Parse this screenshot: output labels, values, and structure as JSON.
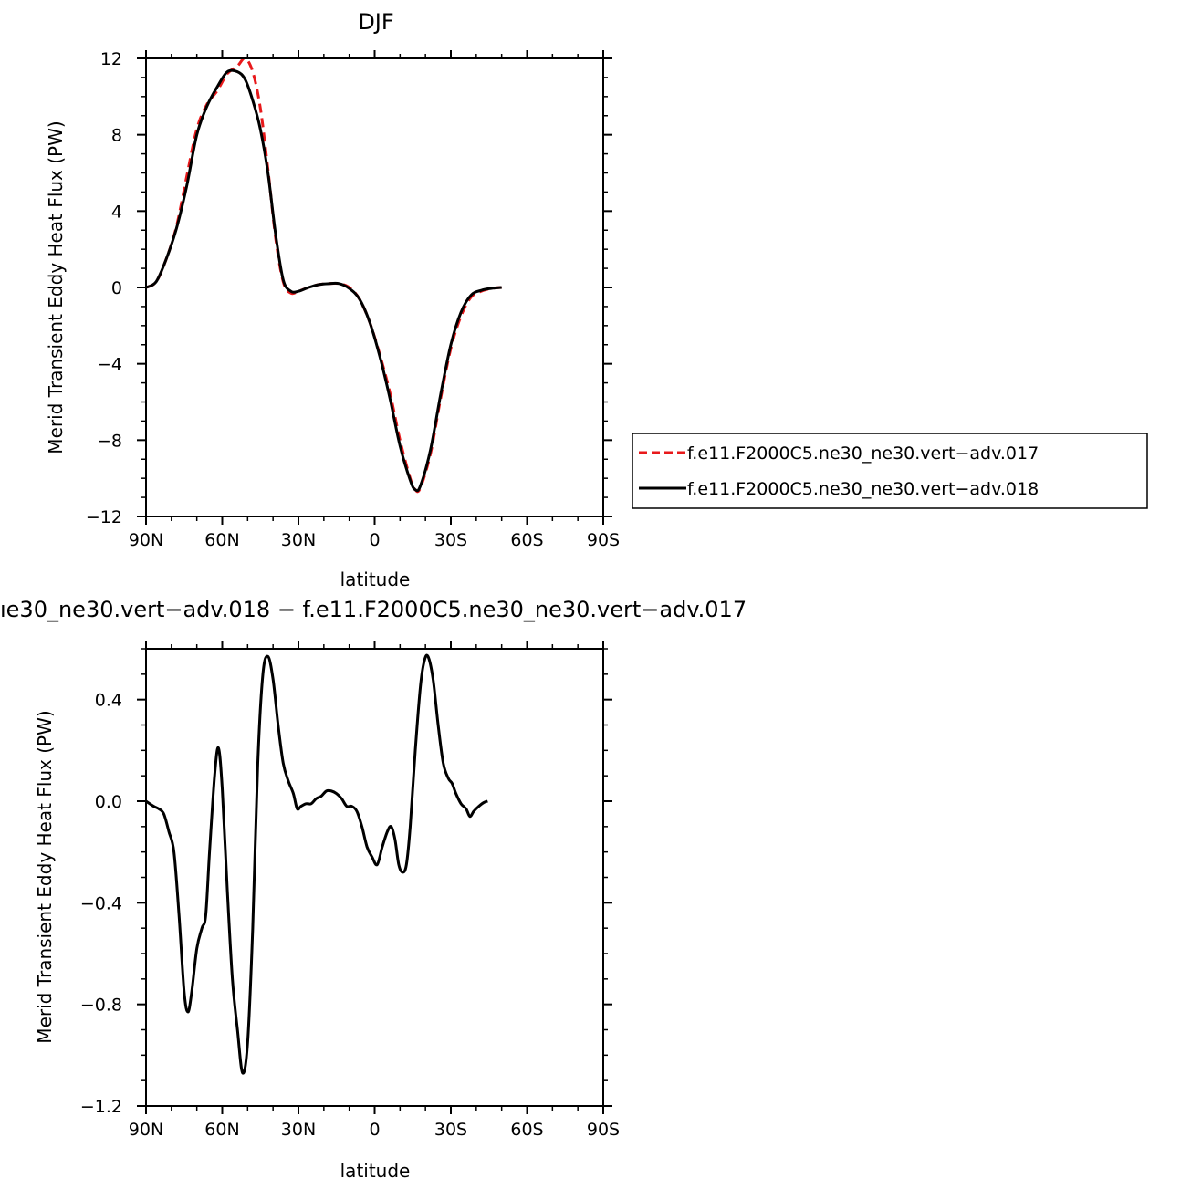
{
  "chart_data": [
    {
      "type": "line",
      "title": "DJF",
      "xlabel": "latitude",
      "ylabel": "Merid Transient Eddy Heat Flux (PW)",
      "xlim": [
        90,
        -90
      ],
      "ylim": [
        -12,
        12
      ],
      "x_ticks": [
        {
          "value": 90,
          "label": "90N"
        },
        {
          "value": 60,
          "label": "60N"
        },
        {
          "value": 30,
          "label": "30N"
        },
        {
          "value": 0,
          "label": "0"
        },
        {
          "value": -30,
          "label": "30S"
        },
        {
          "value": -60,
          "label": "60S"
        },
        {
          "value": -90,
          "label": "90S"
        }
      ],
      "y_ticks": [
        {
          "value": 12,
          "label": "12"
        },
        {
          "value": 8,
          "label": "8"
        },
        {
          "value": 4,
          "label": "4"
        },
        {
          "value": 0,
          "label": "0"
        },
        {
          "value": -4,
          "label": "−4"
        },
        {
          "value": -8,
          "label": "−8"
        },
        {
          "value": -12,
          "label": "−12"
        }
      ],
      "legend": {
        "placement": "right"
      },
      "series": [
        {
          "name": "f.e11.F2000C5.ne30_ne30.vert−adv.017",
          "color": "#e8191b",
          "dash": "dashed",
          "points": [
            [
              90,
              0
            ],
            [
              86,
              0.3
            ],
            [
              82,
              1.5
            ],
            [
              78,
              3.2
            ],
            [
              74,
              5.8
            ],
            [
              70,
              8.3
            ],
            [
              66,
              9.6
            ],
            [
              62,
              10.3
            ],
            [
              58,
              11.2
            ],
            [
              54,
              11.6
            ],
            [
              51,
              12.0
            ],
            [
              48,
              11.3
            ],
            [
              45,
              9.4
            ],
            [
              42,
              6.2
            ],
            [
              39,
              2.6
            ],
            [
              36,
              0.3
            ],
            [
              33,
              -0.3
            ],
            [
              30,
              -0.2
            ],
            [
              26,
              0
            ],
            [
              22,
              0.15
            ],
            [
              18,
              0.2
            ],
            [
              14,
              0.2
            ],
            [
              10,
              0
            ],
            [
              6,
              -0.6
            ],
            [
              2,
              -1.8
            ],
            [
              -2,
              -3.5
            ],
            [
              -6,
              -5.5
            ],
            [
              -10,
              -8.0
            ],
            [
              -14,
              -10.0
            ],
            [
              -16,
              -10.6
            ],
            [
              -18,
              -10.5
            ],
            [
              -22,
              -8.7
            ],
            [
              -26,
              -5.8
            ],
            [
              -30,
              -3.2
            ],
            [
              -34,
              -1.5
            ],
            [
              -38,
              -0.5
            ],
            [
              -42,
              -0.2
            ],
            [
              -46,
              -0.05
            ],
            [
              -50,
              0
            ]
          ]
        },
        {
          "name": "f.e11.F2000C5.ne30_ne30.vert−adv.018",
          "color": "#000000",
          "dash": "solid",
          "points": [
            [
              90,
              0
            ],
            [
              86,
              0.3
            ],
            [
              82,
              1.5
            ],
            [
              78,
              3.1
            ],
            [
              74,
              5.3
            ],
            [
              70,
              8.0
            ],
            [
              66,
              9.5
            ],
            [
              62,
              10.5
            ],
            [
              58,
              11.3
            ],
            [
              54,
              11.3
            ],
            [
              51,
              10.9
            ],
            [
              48,
              9.8
            ],
            [
              45,
              8.3
            ],
            [
              42,
              6.0
            ],
            [
              39,
              2.8
            ],
            [
              36,
              0.4
            ],
            [
              33,
              -0.2
            ],
            [
              30,
              -0.2
            ],
            [
              26,
              0
            ],
            [
              22,
              0.15
            ],
            [
              18,
              0.2
            ],
            [
              14,
              0.2
            ],
            [
              10,
              -0.05
            ],
            [
              6,
              -0.6
            ],
            [
              2,
              -1.8
            ],
            [
              -2,
              -3.6
            ],
            [
              -6,
              -5.8
            ],
            [
              -10,
              -8.3
            ],
            [
              -14,
              -10.1
            ],
            [
              -16,
              -10.6
            ],
            [
              -18,
              -10.4
            ],
            [
              -22,
              -8.5
            ],
            [
              -26,
              -5.6
            ],
            [
              -30,
              -3.0
            ],
            [
              -34,
              -1.3
            ],
            [
              -38,
              -0.4
            ],
            [
              -42,
              -0.15
            ],
            [
              -46,
              -0.05
            ],
            [
              -50,
              0
            ]
          ]
        }
      ]
    },
    {
      "type": "line",
      "title": "ıe30_ne30.vert−adv.018 − f.e11.F2000C5.ne30_ne30.vert−adv.017",
      "xlabel": "latitude",
      "ylabel": "Merid Transient Eddy Heat Flux (PW)",
      "xlim": [
        90,
        -90
      ],
      "ylim": [
        -1.2,
        0.6
      ],
      "x_ticks": [
        {
          "value": 90,
          "label": "90N"
        },
        {
          "value": 60,
          "label": "60N"
        },
        {
          "value": 30,
          "label": "30N"
        },
        {
          "value": 0,
          "label": "0"
        },
        {
          "value": -30,
          "label": "30S"
        },
        {
          "value": -60,
          "label": "60S"
        },
        {
          "value": -90,
          "label": "90S"
        }
      ],
      "y_ticks": [
        {
          "value": 0.4,
          "label": "0.4"
        },
        {
          "value": 0.0,
          "label": "0.0"
        },
        {
          "value": -0.4,
          "label": "−0.4"
        },
        {
          "value": -0.8,
          "label": "−0.8"
        },
        {
          "value": -1.2,
          "label": "−1.2"
        }
      ],
      "series": [
        {
          "color": "#000000",
          "dash": "solid",
          "points": [
            [
              90,
              0
            ],
            [
              87,
              -0.02
            ],
            [
              85,
              -0.03
            ],
            [
              83,
              -0.05
            ],
            [
              81,
              -0.12
            ],
            [
              79,
              -0.2
            ],
            [
              77,
              -0.45
            ],
            [
              75,
              -0.75
            ],
            [
              73.5,
              -0.83
            ],
            [
              72,
              -0.75
            ],
            [
              70,
              -0.58
            ],
            [
              68,
              -0.5
            ],
            [
              66.5,
              -0.45
            ],
            [
              65,
              -0.2
            ],
            [
              63,
              0.1
            ],
            [
              61.5,
              0.21
            ],
            [
              60,
              0.05
            ],
            [
              58,
              -0.35
            ],
            [
              56,
              -0.7
            ],
            [
              54,
              -0.9
            ],
            [
              52,
              -1.07
            ],
            [
              50,
              -0.95
            ],
            [
              48,
              -0.5
            ],
            [
              46,
              0.15
            ],
            [
              44,
              0.5
            ],
            [
              42,
              0.57
            ],
            [
              40,
              0.48
            ],
            [
              38,
              0.3
            ],
            [
              36,
              0.15
            ],
            [
              34,
              0.08
            ],
            [
              32,
              0.03
            ],
            [
              30.5,
              -0.03
            ],
            [
              29,
              -0.02
            ],
            [
              27,
              -0.01
            ],
            [
              25,
              -0.01
            ],
            [
              23,
              0.01
            ],
            [
              21,
              0.02
            ],
            [
              19,
              0.04
            ],
            [
              17,
              0.04
            ],
            [
              15,
              0.03
            ],
            [
              13,
              0.01
            ],
            [
              11,
              -0.02
            ],
            [
              9,
              -0.02
            ],
            [
              7,
              -0.04
            ],
            [
              5,
              -0.1
            ],
            [
              3,
              -0.18
            ],
            [
              1,
              -0.22
            ],
            [
              -1,
              -0.25
            ],
            [
              -3,
              -0.18
            ],
            [
              -5,
              -0.12
            ],
            [
              -6.5,
              -0.1
            ],
            [
              -8,
              -0.15
            ],
            [
              -9.5,
              -0.25
            ],
            [
              -11,
              -0.28
            ],
            [
              -12.5,
              -0.25
            ],
            [
              -14,
              -0.1
            ],
            [
              -16,
              0.2
            ],
            [
              -18,
              0.45
            ],
            [
              -19.5,
              0.55
            ],
            [
              -21,
              0.57
            ],
            [
              -23,
              0.48
            ],
            [
              -25,
              0.3
            ],
            [
              -27,
              0.15
            ],
            [
              -29,
              0.09
            ],
            [
              -30.5,
              0.07
            ],
            [
              -32,
              0.03
            ],
            [
              -34,
              -0.01
            ],
            [
              -36,
              -0.03
            ],
            [
              -37.5,
              -0.06
            ],
            [
              -39,
              -0.04
            ],
            [
              -41,
              -0.02
            ],
            [
              -43,
              -0.005
            ],
            [
              -44.5,
              0
            ]
          ]
        }
      ]
    }
  ]
}
